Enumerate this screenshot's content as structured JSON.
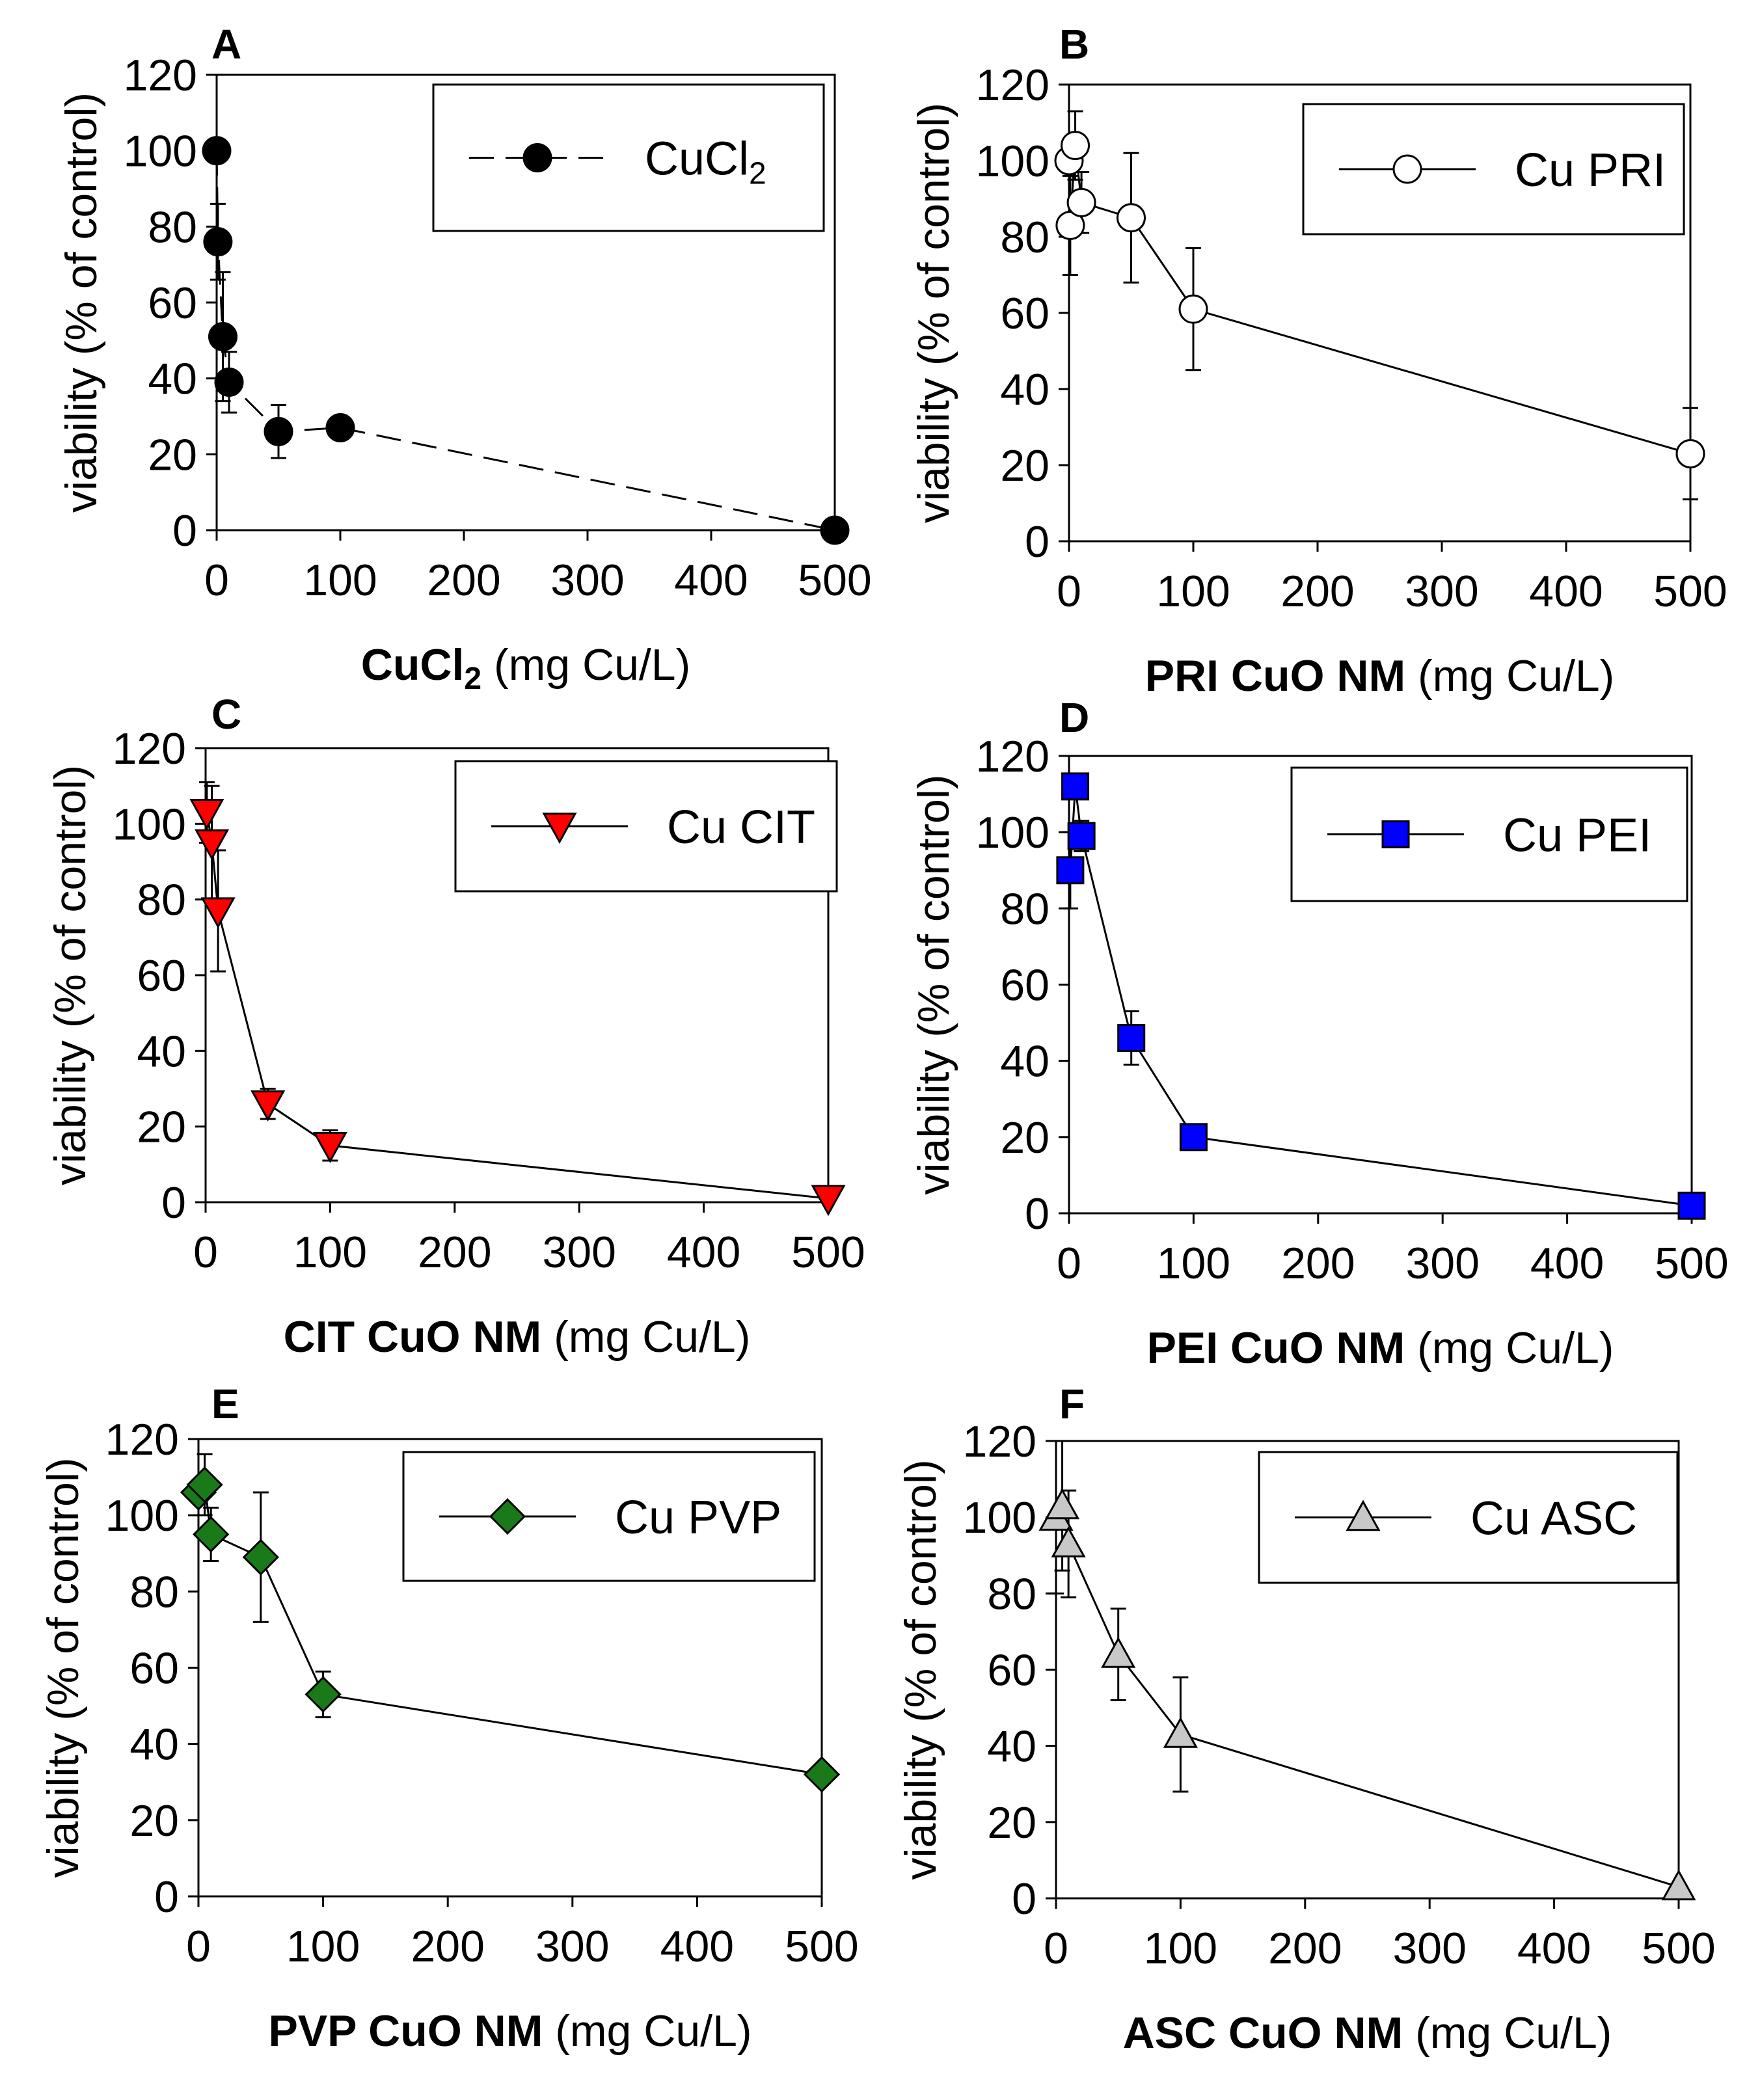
{
  "chart_data": [
    {
      "panel": "A",
      "type": "line",
      "series": [
        {
          "name": "CuCl2",
          "x": [
            0,
            1,
            5,
            10,
            50,
            100,
            500
          ],
          "values": [
            100,
            76,
            51,
            39,
            26,
            27,
            0
          ],
          "err": [
            0,
            10,
            17,
            8,
            7,
            0,
            0
          ]
        }
      ],
      "legend": {
        "label": "CuCl",
        "sub": "2"
      },
      "xlabel": {
        "bold": "CuCl",
        "bold_sub": "2",
        "rest": " (mg Cu/L)"
      },
      "ylabel": "viability (% of control)",
      "xlim": [
        0,
        500
      ],
      "ylim": [
        0,
        120
      ],
      "xticks": [
        "0",
        "100",
        "200",
        "300",
        "400",
        "500"
      ],
      "yticks": [
        "0",
        "20",
        "40",
        "60",
        "80",
        "100",
        "120"
      ],
      "marker": "circle",
      "fill": "#000000",
      "line_style": "dashed"
    },
    {
      "panel": "B",
      "type": "line",
      "series": [
        {
          "name": "Cu PRI",
          "x": [
            0,
            1,
            5,
            10,
            50,
            100,
            500
          ],
          "values": [
            100,
            83,
            104,
            89,
            85,
            61,
            23
          ],
          "err": [
            0,
            13,
            9,
            8,
            17,
            16,
            12
          ]
        }
      ],
      "legend": {
        "label": "Cu PRI",
        "sub": ""
      },
      "xlabel": {
        "bold": "PRI CuO NM",
        "bold_sub": "",
        "rest": " (mg Cu/L)"
      },
      "ylabel": "viability (% of control)",
      "xlim": [
        0,
        500
      ],
      "ylim": [
        0,
        120
      ],
      "xticks": [
        "0",
        "100",
        "200",
        "300",
        "400",
        "500"
      ],
      "yticks": [
        "0",
        "20",
        "40",
        "60",
        "80",
        "100",
        "120"
      ],
      "marker": "circle",
      "fill": "#ffffff",
      "line_style": "solid"
    },
    {
      "panel": "C",
      "type": "line",
      "series": [
        {
          "name": "Cu CIT",
          "x": [
            1,
            5,
            10,
            50,
            100,
            500
          ],
          "values": [
            103,
            95,
            77,
            26,
            15,
            1
          ],
          "err": [
            8,
            15,
            16,
            4,
            4,
            0
          ]
        }
      ],
      "legend": {
        "label": "Cu CIT",
        "sub": ""
      },
      "xlabel": {
        "bold": "CIT CuO NM",
        "bold_sub": "",
        "rest": " (mg Cu/L)"
      },
      "ylabel": "viability (% of control)",
      "xlim": [
        0,
        500
      ],
      "ylim": [
        0,
        120
      ],
      "xticks": [
        "0",
        "100",
        "200",
        "300",
        "400",
        "500"
      ],
      "yticks": [
        "0",
        "20",
        "40",
        "60",
        "80",
        "100",
        "120"
      ],
      "marker": "triangle-down",
      "fill": "#ff0000",
      "line_style": "solid"
    },
    {
      "panel": "D",
      "type": "line",
      "series": [
        {
          "name": "Cu PEI",
          "x": [
            1,
            5,
            10,
            50,
            100,
            500
          ],
          "values": [
            90,
            112,
            99,
            46,
            20,
            2
          ],
          "err": [
            10,
            0,
            4,
            7,
            0,
            0
          ]
        }
      ],
      "legend": {
        "label": "Cu PEI",
        "sub": ""
      },
      "xlabel": {
        "bold": "PEI CuO NM",
        "bold_sub": "",
        "rest": " (mg Cu/L)"
      },
      "ylabel": "viability (% of control)",
      "xlim": [
        0,
        500
      ],
      "ylim": [
        0,
        120
      ],
      "xticks": [
        "0",
        "100",
        "200",
        "300",
        "400",
        "500"
      ],
      "yticks": [
        "0",
        "20",
        "40",
        "60",
        "80",
        "100",
        "120"
      ],
      "marker": "square",
      "fill": "#0000ff",
      "line_style": "solid"
    },
    {
      "panel": "E",
      "type": "line",
      "series": [
        {
          "name": "Cu PVP",
          "x": [
            0,
            5,
            10,
            50,
            100,
            500
          ],
          "values": [
            106,
            108,
            95,
            89,
            53,
            32
          ],
          "err": [
            0,
            8,
            7,
            17,
            6,
            0
          ]
        }
      ],
      "legend": {
        "label": "Cu PVP",
        "sub": ""
      },
      "xlabel": {
        "bold": "PVP CuO NM",
        "bold_sub": "",
        "rest": " (mg Cu/L)"
      },
      "ylabel": "viability (% of control)",
      "xlim": [
        0,
        500
      ],
      "ylim": [
        0,
        120
      ],
      "xticks": [
        "0",
        "100",
        "200",
        "300",
        "400",
        "500"
      ],
      "yticks": [
        "0",
        "20",
        "40",
        "60",
        "80",
        "100",
        "120"
      ],
      "marker": "diamond",
      "fill": "#1a7a1a",
      "line_style": "solid"
    },
    {
      "panel": "F",
      "type": "line",
      "series": [
        {
          "name": "Cu ASC",
          "x": [
            0,
            5,
            10,
            50,
            100,
            500
          ],
          "values": [
            100,
            103,
            93,
            64,
            43,
            3
          ],
          "err": [
            20,
            17,
            14,
            12,
            15,
            0
          ]
        }
      ],
      "legend": {
        "label": "Cu ASC",
        "sub": ""
      },
      "xlabel": {
        "bold": "ASC CuO NM",
        "bold_sub": "",
        "rest": " (mg Cu/L)"
      },
      "ylabel": "viability (% of control)",
      "xlim": [
        0,
        500
      ],
      "ylim": [
        0,
        120
      ],
      "xticks": [
        "0",
        "100",
        "200",
        "300",
        "400",
        "500"
      ],
      "yticks": [
        "0",
        "20",
        "40",
        "60",
        "80",
        "100",
        "120"
      ],
      "marker": "triangle-up",
      "fill": "#c8c8c8",
      "line_style": "solid"
    }
  ]
}
